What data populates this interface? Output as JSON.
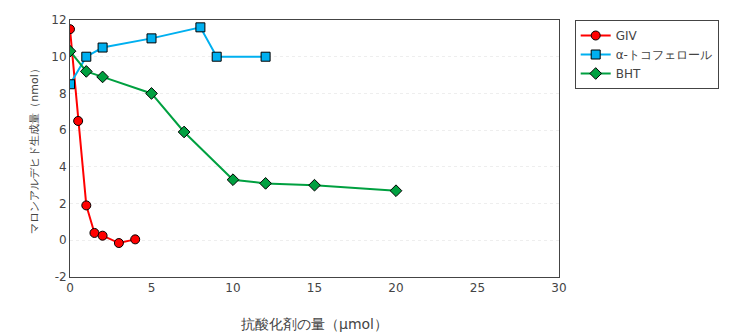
{
  "chart_data": {
    "type": "line",
    "x_label": "抗酸化剤の量（μmol）",
    "y_label": "マロンアルデヒド生成量（nmol）",
    "xlim": [
      0,
      30
    ],
    "ylim": [
      -2,
      12
    ],
    "xticks": [
      0,
      5,
      10,
      15,
      20,
      25,
      30
    ],
    "yticks": [
      -2,
      0,
      2,
      4,
      6,
      8,
      10,
      12
    ],
    "grid": true,
    "legend": "upper right",
    "series": [
      {
        "name": "GIV",
        "color": "#ff0000",
        "marker": "circle",
        "x": [
          0,
          0.5,
          1.0,
          1.5,
          2.0,
          3.0,
          4.0
        ],
        "values": [
          11.5,
          6.5,
          1.9,
          0.4,
          0.25,
          -0.15,
          0.05
        ]
      },
      {
        "name": "α-トコフェロール",
        "color": "#00b0f0",
        "marker": "square",
        "x": [
          0,
          1.0,
          2.0,
          5.0,
          8.0,
          9.0,
          12.0
        ],
        "values": [
          8.5,
          10.0,
          10.5,
          11.0,
          11.6,
          10.0,
          10.0
        ]
      },
      {
        "name": "BHT",
        "color": "#00a040",
        "marker": "diamond",
        "x": [
          0,
          1.0,
          2.0,
          5.0,
          7.0,
          10.0,
          12.0,
          15.0,
          20.0
        ],
        "values": [
          10.3,
          9.2,
          8.9,
          8.0,
          5.9,
          3.3,
          3.1,
          3.0,
          2.7
        ]
      }
    ]
  }
}
